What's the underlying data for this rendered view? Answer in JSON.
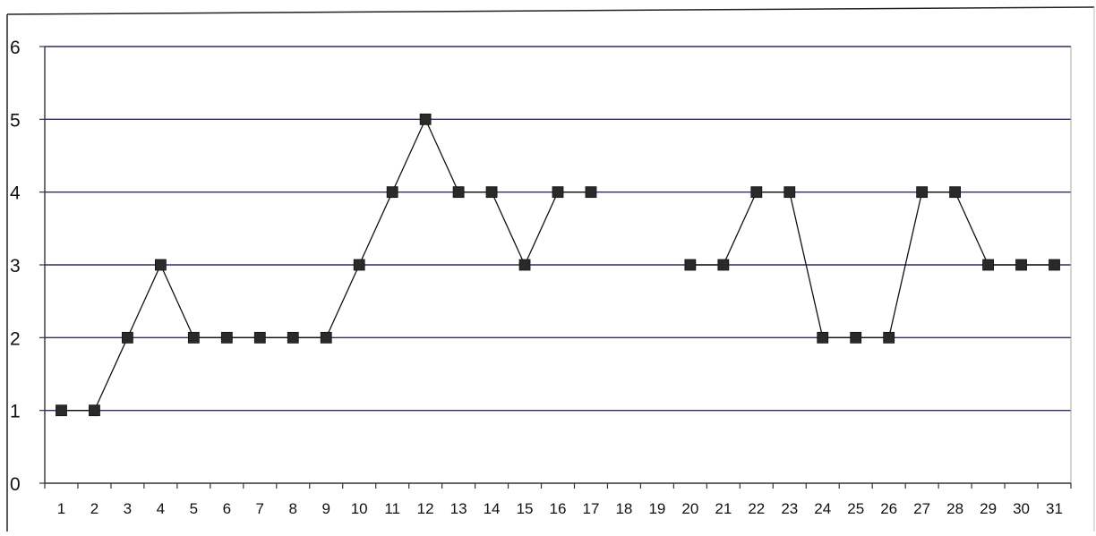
{
  "colors": {
    "gridline": "#2b2f66",
    "axis": "#333333",
    "series_line": "#111111",
    "marker": "#2a2a2a",
    "frame": "#222222",
    "plot_bg": "#ffffff"
  },
  "chart_data": {
    "type": "line",
    "title": "",
    "xlabel": "",
    "ylabel": "",
    "x": [
      1,
      2,
      3,
      4,
      5,
      6,
      7,
      8,
      9,
      10,
      11,
      12,
      13,
      14,
      15,
      16,
      17,
      18,
      19,
      20,
      21,
      22,
      23,
      24,
      25,
      26,
      27,
      28,
      29,
      30,
      31
    ],
    "categories": [
      "1",
      "2",
      "3",
      "4",
      "5",
      "6",
      "7",
      "8",
      "9",
      "10",
      "11",
      "12",
      "13",
      "14",
      "15",
      "16",
      "17",
      "18",
      "19",
      "20",
      "21",
      "22",
      "23",
      "24",
      "25",
      "26",
      "27",
      "28",
      "29",
      "30",
      "31"
    ],
    "ylim": [
      0,
      6
    ],
    "y_ticks": [
      "0",
      "1",
      "2",
      "3",
      "4",
      "5",
      "6"
    ],
    "grid": "horizontal major gridlines",
    "legend": "none",
    "marker": "filled square",
    "series": [
      {
        "values": [
          1,
          1,
          2,
          3,
          2,
          2,
          2,
          2,
          2,
          3,
          4,
          5,
          4,
          4,
          3,
          4,
          4,
          null,
          null,
          3,
          3,
          4,
          4,
          2,
          2,
          2,
          4,
          4,
          3,
          3,
          3
        ]
      }
    ]
  }
}
